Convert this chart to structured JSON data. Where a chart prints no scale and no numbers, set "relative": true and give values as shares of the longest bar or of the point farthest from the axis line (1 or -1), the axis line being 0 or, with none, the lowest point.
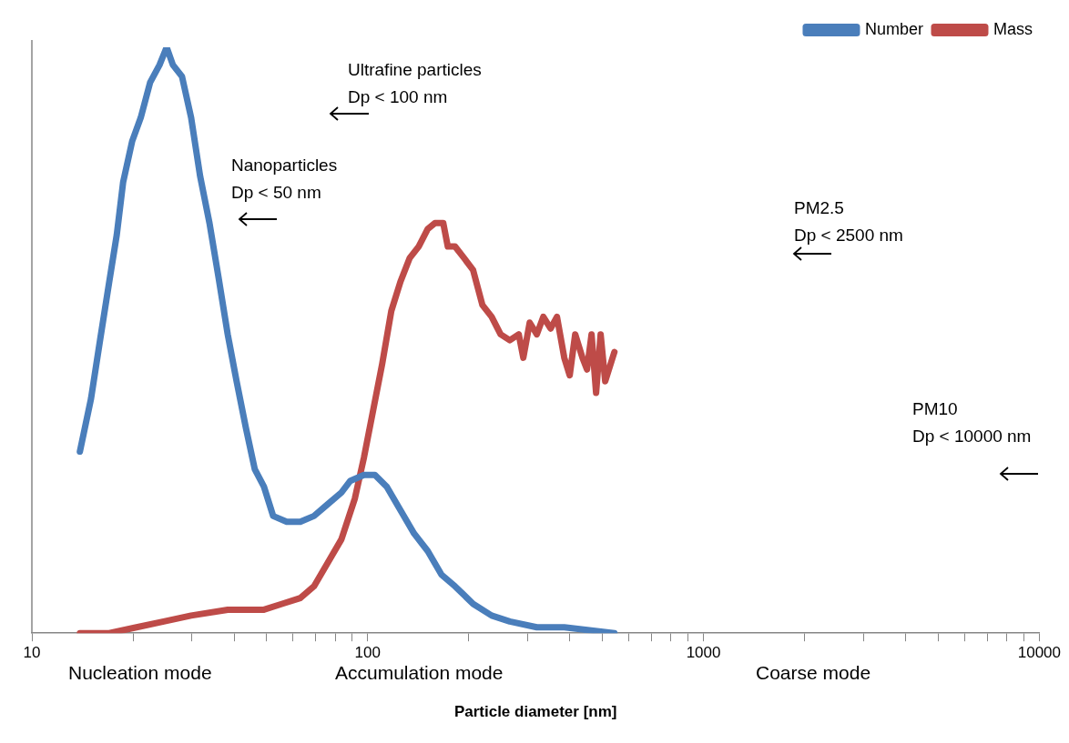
{
  "chart_data": {
    "type": "line",
    "xlabel": "Particle diameter [nm]",
    "relative": true,
    "log": "x",
    "grid": false,
    "legend": "top right",
    "marker": "none",
    "line_style": "solid",
    "tick_labels": "x",
    "xlim": [
      10,
      10000
    ],
    "xticks": [
      10,
      {
        "value": 20,
        "label": null
      },
      {
        "value": 30,
        "label": null
      },
      {
        "value": 40,
        "label": null
      },
      {
        "value": 50,
        "label": null
      },
      {
        "value": 60,
        "label": null
      },
      {
        "value": 70,
        "label": null
      },
      {
        "value": 80,
        "label": null
      },
      {
        "value": 90,
        "label": null
      },
      100,
      {
        "value": 200,
        "label": null
      },
      {
        "value": 300,
        "label": null
      },
      {
        "value": 400,
        "label": null
      },
      {
        "value": 500,
        "label": null
      },
      {
        "value": 600,
        "label": null
      },
      {
        "value": 700,
        "label": null
      },
      {
        "value": 800,
        "label": null
      },
      {
        "value": 900,
        "label": null
      },
      1000,
      {
        "value": 2000,
        "label": null
      },
      {
        "value": 3000,
        "label": null
      },
      {
        "value": 4000,
        "label": null
      },
      {
        "value": 5000,
        "label": null
      },
      {
        "value": 6000,
        "label": null
      },
      {
        "value": 7000,
        "label": null
      },
      {
        "value": 8000,
        "label": null
      },
      {
        "value": 9000,
        "label": null
      },
      10000
    ],
    "annotations": [
      "Ultrafine particles\nDp < 100 nm",
      "Nanoparticles\nDp < 50 nm",
      "PM2.5\nDp < 2500 nm",
      "PM10\nDp < 10000 nm",
      "Nucleation mode",
      "Accumulation mode",
      "Coarse mode"
    ],
    "series": [
      {
        "name": "Number",
        "color": "#4a7ebb",
        "x": [
          13.9,
          15.0,
          15.96,
          17.0,
          17.9,
          18.7,
          19.9,
          21.1,
          22.5,
          24.0,
          25.2,
          26.3,
          28.0,
          29.8,
          31.7,
          33.8,
          35.9,
          38.3,
          40.7,
          43.4,
          46.1,
          49.1,
          52.3,
          57.4,
          63.0,
          69.2,
          76.0,
          83.5,
          88.8,
          97.5,
          105.1,
          114.0,
          125.2,
          137.5,
          151,
          165.8,
          182,
          206,
          234,
          265,
          319,
          385,
          543
        ],
        "values": [
          0.31,
          0.4,
          0.5,
          0.6,
          0.68,
          0.77,
          0.84,
          0.88,
          0.94,
          0.97,
          1,
          0.97,
          0.95,
          0.88,
          0.78,
          0.7,
          0.61,
          0.51,
          0.43,
          0.35,
          0.28,
          0.25,
          0.2,
          0.19,
          0.19,
          0.2,
          0.22,
          0.24,
          0.26,
          0.27,
          0.27,
          0.25,
          0.21,
          0.17,
          0.14,
          0.1,
          0.08,
          0.05,
          0.03,
          0.02,
          0.01,
          0.01,
          0
        ]
      },
      {
        "name": "Mass",
        "color": "#be4b48",
        "x": [
          13.9,
          17.0,
          20.5,
          24.7,
          29.8,
          38.3,
          43.4,
          49.1,
          55.6,
          63.0,
          69.2,
          76.0,
          83.5,
          91.6,
          97.5,
          103.8,
          110.5,
          117.6,
          125.2,
          133.3,
          141.9,
          151,
          158.7,
          167.9,
          173.2,
          182,
          193.8,
          206,
          219.6,
          234,
          248.8,
          265,
          281.8,
          290.7,
          303.7,
          319,
          333.4,
          350.5,
          366.2,
          385,
          399.6,
          414.9,
          436.2,
          450,
          464.2,
          478.9,
          494.0,
          509.7,
          543
        ],
        "values": [
          0,
          0,
          0.01,
          0.02,
          0.03,
          0.04,
          0.04,
          0.04,
          0.05,
          0.06,
          0.08,
          0.12,
          0.16,
          0.23,
          0.3,
          0.38,
          0.46,
          0.55,
          0.6,
          0.64,
          0.66,
          0.69,
          0.7,
          0.7,
          0.66,
          0.66,
          0.64,
          0.62,
          0.56,
          0.54,
          0.51,
          0.5,
          0.51,
          0.47,
          0.53,
          0.51,
          0.54,
          0.52,
          0.54,
          0.47,
          0.44,
          0.51,
          0.47,
          0.45,
          0.51,
          0.41,
          0.51,
          0.43,
          0.48
        ]
      }
    ]
  }
}
